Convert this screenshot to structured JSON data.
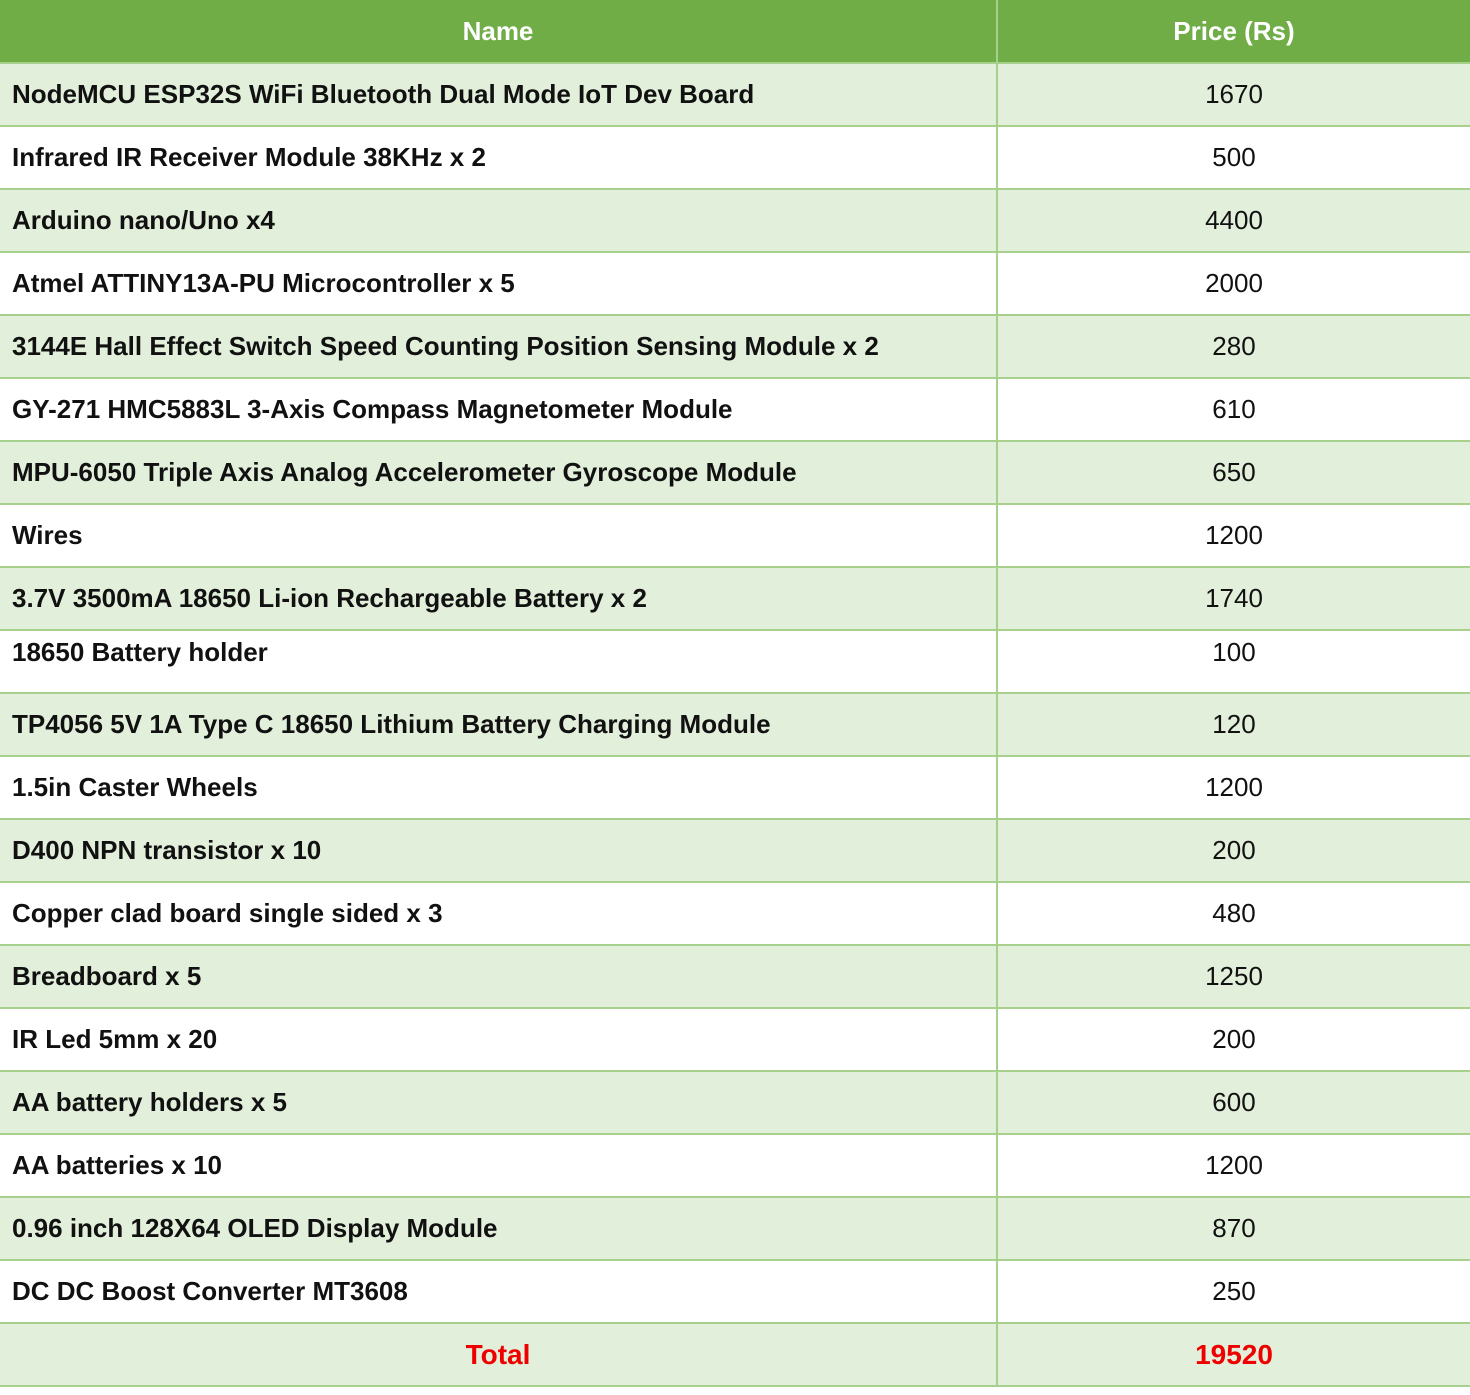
{
  "table": {
    "headers": {
      "name": "Name",
      "price": "Price (Rs)"
    },
    "rows": [
      {
        "name": "NodeMCU ESP32S WiFi Bluetooth Dual Mode IoT Dev Board",
        "price": "1670"
      },
      {
        "name": "Infrared IR Receiver Module 38KHz x 2",
        "price": "500"
      },
      {
        "name": "Arduino nano/Uno x4",
        "price": "4400"
      },
      {
        "name": "Atmel ATTINY13A-PU Microcontroller x 5",
        "price": "2000"
      },
      {
        "name": "3144E Hall Effect Switch Speed Counting Position Sensing Module x 2",
        "price": "280"
      },
      {
        "name": "GY-271 HMC5883L 3-Axis Compass Magnetometer Module",
        "price": "610"
      },
      {
        "name": "MPU-6050 Triple Axis Analog Accelerometer Gyroscope Module",
        "price": "650"
      },
      {
        "name": "Wires",
        "price": "1200"
      },
      {
        "name": "3.7V 3500mA 18650 Li-ion Rechargeable Battery x 2",
        "price": "1740"
      },
      {
        "name": "18650 Battery holder",
        "price": "100"
      },
      {
        "name": "TP4056 5V 1A Type C 18650 Lithium Battery Charging Module",
        "price": "120"
      },
      {
        "name": "1.5in Caster Wheels",
        "price": "1200"
      },
      {
        "name": "D400 NPN transistor x 10",
        "price": "200"
      },
      {
        "name": "Copper clad board single sided x 3",
        "price": "480"
      },
      {
        "name": "Breadboard x 5",
        "price": "1250"
      },
      {
        "name": "IR Led 5mm x 20",
        "price": "200"
      },
      {
        "name": "AA battery holders x 5",
        "price": "600"
      },
      {
        "name": "AA batteries x 10",
        "price": "1200"
      },
      {
        "name": "0.96 inch 128X64 OLED Display Module",
        "price": "870"
      },
      {
        "name": "DC DC Boost Converter MT3608",
        "price": "250"
      }
    ],
    "total": {
      "label": "Total",
      "value": "19520"
    }
  },
  "colors": {
    "header_bg": "#70ad47",
    "band_bg": "#e2efda",
    "border": "#a8d08d",
    "total_text": "#ee0000"
  }
}
